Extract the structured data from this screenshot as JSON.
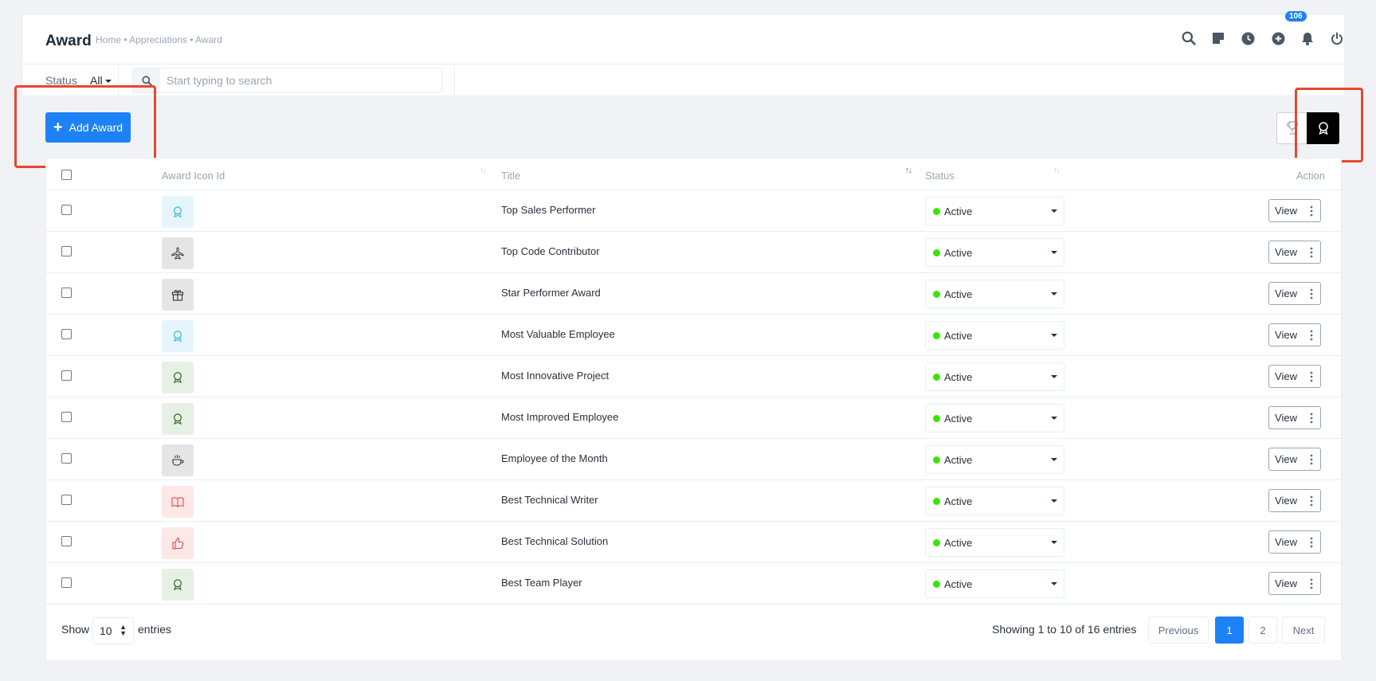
{
  "header": {
    "title": "Award",
    "breadcrumb": "Home • Appreciations • Award",
    "icons": [
      "search-icon",
      "sticky-note-icon",
      "clock-icon",
      "plus-circle-icon",
      "bell-icon",
      "power-icon"
    ],
    "notification_count": "106"
  },
  "filters": {
    "status_label": "Status",
    "status_value": "All",
    "search_placeholder": "Start typing to search"
  },
  "toolbar": {
    "add_label": "Add Award",
    "view_toggle": [
      "trophy-icon",
      "award-icon"
    ]
  },
  "table": {
    "columns": [
      "Award Icon Id",
      "Title",
      "Status",
      "Action"
    ],
    "rows": [
      {
        "icon": "award-icon",
        "icon_bg": "#e6f5fb",
        "icon_color": "#3bb4e3",
        "title": "Top Sales Performer",
        "status": "Active",
        "action": "View"
      },
      {
        "icon": "plane-icon",
        "icon_bg": "#e5e5e5",
        "icon_color": "#333333",
        "title": "Top Code Contributor",
        "status": "Active",
        "action": "View"
      },
      {
        "icon": "gift-icon",
        "icon_bg": "#e5e5e5",
        "icon_color": "#333333",
        "title": "Star Performer Award",
        "status": "Active",
        "action": "View"
      },
      {
        "icon": "award-icon",
        "icon_bg": "#e6f5fb",
        "icon_color": "#3bb4e3",
        "title": "Most Valuable Employee",
        "status": "Active",
        "action": "View"
      },
      {
        "icon": "award-icon",
        "icon_bg": "#e6f0e4",
        "icon_color": "#2e6b1f",
        "title": "Most Innovative Project",
        "status": "Active",
        "action": "View"
      },
      {
        "icon": "award-icon",
        "icon_bg": "#e6f0e4",
        "icon_color": "#2e6b1f",
        "title": "Most Improved Employee",
        "status": "Active",
        "action": "View"
      },
      {
        "icon": "cup-icon",
        "icon_bg": "#e5e5e5",
        "icon_color": "#333333",
        "title": "Employee of the Month",
        "status": "Active",
        "action": "View"
      },
      {
        "icon": "book-icon",
        "icon_bg": "#fde8e8",
        "icon_color": "#e5484d",
        "title": "Best Technical Writer",
        "status": "Active",
        "action": "View"
      },
      {
        "icon": "thumbs-up-icon",
        "icon_bg": "#fde8e8",
        "icon_color": "#e5484d",
        "title": "Best Technical Solution",
        "status": "Active",
        "action": "View"
      },
      {
        "icon": "award-icon",
        "icon_bg": "#e6f0e4",
        "icon_color": "#2e6b1f",
        "title": "Best Team Player",
        "status": "Active",
        "action": "View"
      }
    ]
  },
  "footer": {
    "show_label": "Show",
    "entries_value": "10",
    "entries_label": "entries",
    "showing_text": "Showing 1 to 10 of 16 entries",
    "prev_label": "Previous",
    "pages": [
      "1",
      "2"
    ],
    "current_page": "1",
    "next_label": "Next"
  },
  "colors": {
    "accent": "#1d82f5",
    "status_active": "#39e500",
    "highlight": "#e8462f"
  }
}
